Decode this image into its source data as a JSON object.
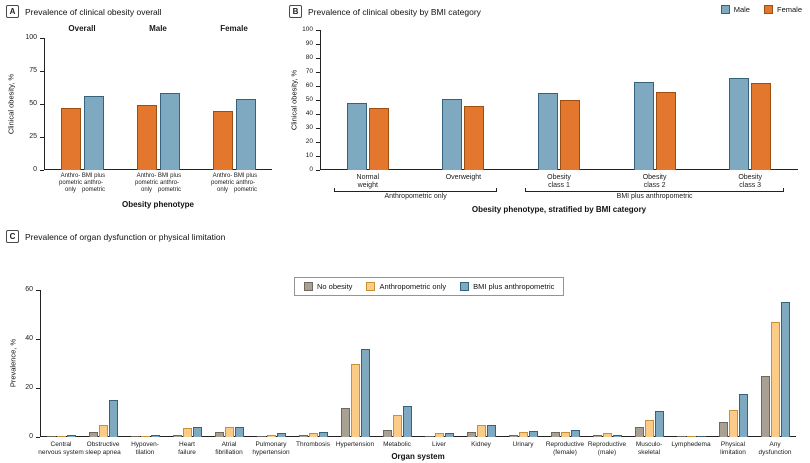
{
  "colors": {
    "blue": "#7FA9C1",
    "blueStroke": "#35637F",
    "orange": "#E2772D",
    "orangeStroke": "#9C4F10",
    "lightOrange": "#FACC87",
    "lightOrangeStroke": "#C79136",
    "gray": "#A8A093",
    "grayStroke": "#6F695D",
    "axis": "#222222"
  },
  "chart_data": [
    {
      "id": "A",
      "type": "bar",
      "title": "Prevalence of clinical obesity overall",
      "ylabel": "Clinical obesity, %",
      "xlabel": "Obesity phenotype",
      "ylim": [
        0,
        100
      ],
      "yticks": [
        0,
        25,
        50,
        75,
        100
      ],
      "groups": [
        "Overall",
        "Male",
        "Female"
      ],
      "categories": [
        "Anthropometric only",
        "BMI plus anthropometric"
      ],
      "category_lines": [
        [
          "Anthro-",
          "pometric",
          "only"
        ],
        [
          "BMI plus",
          "anthro-",
          "pometric"
        ]
      ],
      "series": [
        {
          "name": "Anthropometric only",
          "color": "orange",
          "values": [
            47,
            49,
            45
          ]
        },
        {
          "name": "BMI plus anthropometric",
          "color": "blue",
          "values": [
            56,
            58,
            54
          ]
        }
      ]
    },
    {
      "id": "B",
      "type": "bar",
      "title": "Prevalence of clinical obesity by BMI category",
      "ylabel": "Clinical obesity, %",
      "xlabel": "Obesity phenotype, stratified by BMI category",
      "ylim": [
        0,
        100
      ],
      "yticks": [
        0,
        10,
        20,
        30,
        40,
        50,
        60,
        70,
        80,
        90,
        100
      ],
      "categories": [
        "Normal weight",
        "Overweight",
        "Obesity class 1",
        "Obesity class 2",
        "Obesity class 3"
      ],
      "category_lines": [
        [
          "Normal",
          "weight"
        ],
        [
          "Overweight"
        ],
        [
          "Obesity",
          "class 1"
        ],
        [
          "Obesity",
          "class 2"
        ],
        [
          "Obesity",
          "class 3"
        ]
      ],
      "series": [
        {
          "name": "Male",
          "color": "blue",
          "values": [
            48,
            51,
            55,
            63,
            66
          ]
        },
        {
          "name": "Female",
          "color": "orange",
          "values": [
            44,
            46,
            50,
            56,
            62
          ]
        }
      ],
      "brackets": [
        {
          "label": "Anthropometric only",
          "from": 0,
          "to": 1
        },
        {
          "label": "BMI plus anthropometric",
          "from": 2,
          "to": 4
        }
      ]
    },
    {
      "id": "C",
      "type": "bar",
      "title": "Prevalence of organ dysfunction or physical limitation",
      "ylabel": "Prevalence, %",
      "xlabel": "Organ system",
      "ylim": [
        0,
        60
      ],
      "yticks": [
        0,
        20,
        40,
        60
      ],
      "categories": [
        "Central nervous system",
        "Obstructive sleep apnea",
        "Hypoventilation",
        "Heart failure",
        "Atrial fibrillation",
        "Pulmonary hypertension",
        "Thrombosis",
        "Hypertension",
        "Metabolic",
        "Liver",
        "Kidney",
        "Urinary",
        "Reproductive (female)",
        "Reproductive (male)",
        "Musculoskeletal",
        "Lymphedema",
        "Physical limitation",
        "Any dysfunction"
      ],
      "category_lines": [
        [
          "Central",
          "nervous system"
        ],
        [
          "Obstructive",
          "sleep apnea"
        ],
        [
          "Hypoven-",
          "tilation"
        ],
        [
          "Heart",
          "failure"
        ],
        [
          "Atrial",
          "fibrillation"
        ],
        [
          "Pulmonary",
          "hypertension"
        ],
        [
          "Thrombosis"
        ],
        [
          "Hypertension"
        ],
        [
          "Metabolic"
        ],
        [
          "Liver"
        ],
        [
          "Kidney"
        ],
        [
          "Urinary"
        ],
        [
          "Reproductive",
          "(female)"
        ],
        [
          "Reproductive",
          "(male)"
        ],
        [
          "Musculo-",
          "skeletal"
        ],
        [
          "Lymphedema"
        ],
        [
          "Physical",
          "limitation"
        ],
        [
          "Any",
          "dysfunction"
        ]
      ],
      "series": [
        {
          "name": "No obesity",
          "color": "gray",
          "values": [
            0.4,
            2,
            0.3,
            1,
            2,
            0.5,
            1,
            12,
            3,
            0.5,
            2,
            1,
            2,
            1,
            4,
            0.2,
            6,
            25
          ]
        },
        {
          "name": "Anthropometric only",
          "color": "lightOrange",
          "values": [
            0.5,
            5,
            0.5,
            3.5,
            4,
            1,
            1.5,
            30,
            9,
            1.5,
            5,
            2,
            2,
            1.5,
            7,
            0.3,
            11,
            47
          ]
        },
        {
          "name": "BMI plus anthropometric",
          "color": "blue",
          "values": [
            1,
            15,
            1,
            4,
            4,
            1.5,
            2,
            36,
            12.5,
            1.5,
            5,
            2.5,
            3,
            1,
            10.5,
            0.5,
            17.5,
            55
          ]
        }
      ]
    }
  ]
}
